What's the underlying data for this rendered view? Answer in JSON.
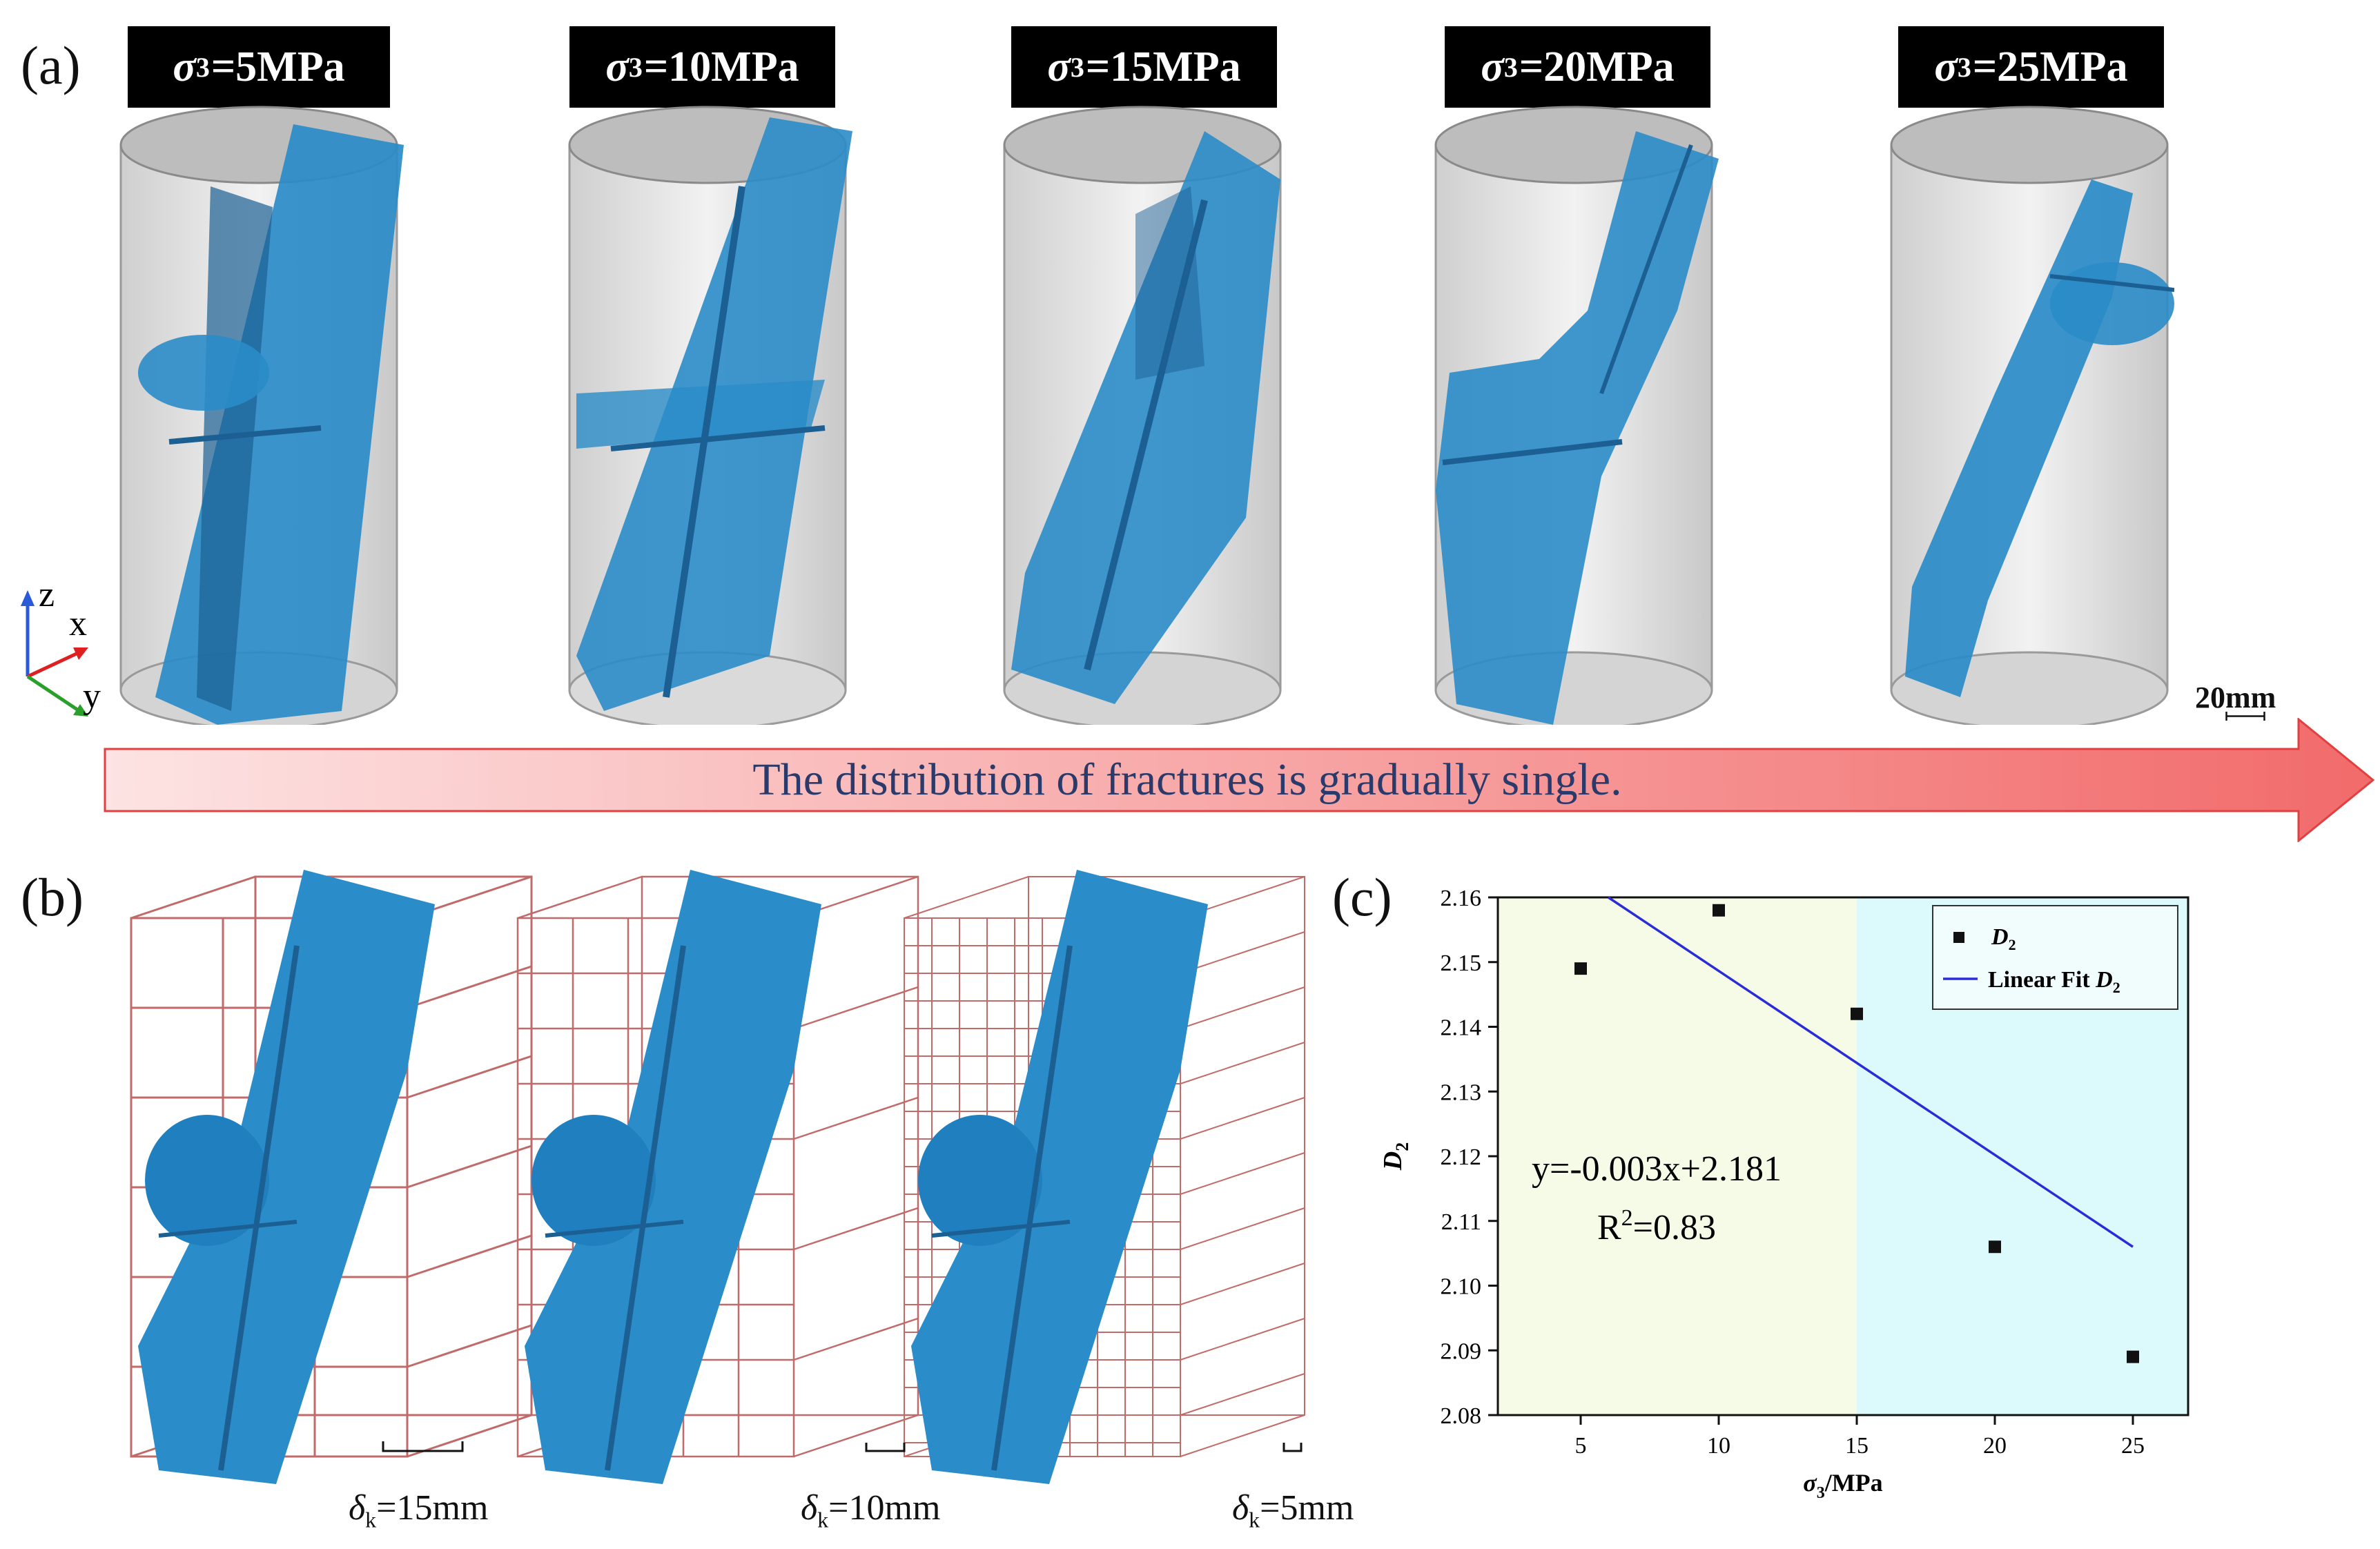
{
  "figure": {
    "label_a": "(a)",
    "label_b": "(b)",
    "label_c": "(c)",
    "stress_tags": [
      {
        "sym": "σ",
        "sub": "3",
        "val": "=5MPa"
      },
      {
        "sym": "σ",
        "sub": "3",
        "val": "=10MPa"
      },
      {
        "sym": "σ",
        "sub": "3",
        "val": "=15MPa"
      },
      {
        "sym": "σ",
        "sub": "3",
        "val": "=20MPa"
      },
      {
        "sym": "σ",
        "sub": "3",
        "val": "=25MPa"
      }
    ],
    "axes_triad": {
      "z": "z",
      "x": "x",
      "y": "y"
    },
    "scale_bar": "20mm",
    "arrow_text": "The distribution of fractures is gradually single.",
    "box_sizes": [
      {
        "sym": "δ",
        "sub": "k",
        "val": "=15mm"
      },
      {
        "sym": "δ",
        "sub": "k",
        "val": "=10mm"
      },
      {
        "sym": "δ",
        "sub": "k",
        "val": "=5mm"
      }
    ],
    "colors": {
      "fracture": "#2a8cc8",
      "fracture_dark": "#1b5f93",
      "grid": "#c06a6a",
      "fit": "#2b2bd8",
      "zone1": "#f6fbe8",
      "zone2": "#dcfafb"
    }
  },
  "chart_data": {
    "type": "scatter",
    "xlabel_sym": "σ",
    "xlabel_sub": "3",
    "xlabel_unit": "/MPa",
    "ylabel_sym": "D",
    "ylabel_sub": "2",
    "xlim": [
      2,
      27
    ],
    "ylim": [
      2.08,
      2.16
    ],
    "xticks": [
      5,
      10,
      15,
      20,
      25
    ],
    "yticks": [
      2.08,
      2.09,
      2.1,
      2.11,
      2.12,
      2.13,
      2.14,
      2.15,
      2.16
    ],
    "ytick_labels": [
      "2.08",
      "2.09",
      "2.10",
      "2.11",
      "2.12",
      "2.13",
      "2.14",
      "2.15",
      "2.16"
    ],
    "series": [
      {
        "name": "D2",
        "legend_sym": "D",
        "legend_sub": "2",
        "x": [
          5,
          10,
          15,
          20,
          25
        ],
        "y": [
          2.149,
          2.158,
          2.142,
          2.106,
          2.089
        ]
      }
    ],
    "fit": {
      "legend_prefix": "Linear Fit ",
      "legend_sym": "D",
      "legend_sub": "2",
      "slope": -0.003,
      "intercept": 2.181,
      "x_range": [
        6,
        25
      ]
    },
    "shaded_regions": [
      {
        "from": 2,
        "to": 15
      },
      {
        "from": 15,
        "to": 27
      }
    ],
    "annotation_eq": "y=-0.003x+2.181",
    "annotation_r2_prefix": "R",
    "annotation_r2_sup": "2",
    "annotation_r2_val": "=0.83",
    "legend_position": "top-right"
  }
}
